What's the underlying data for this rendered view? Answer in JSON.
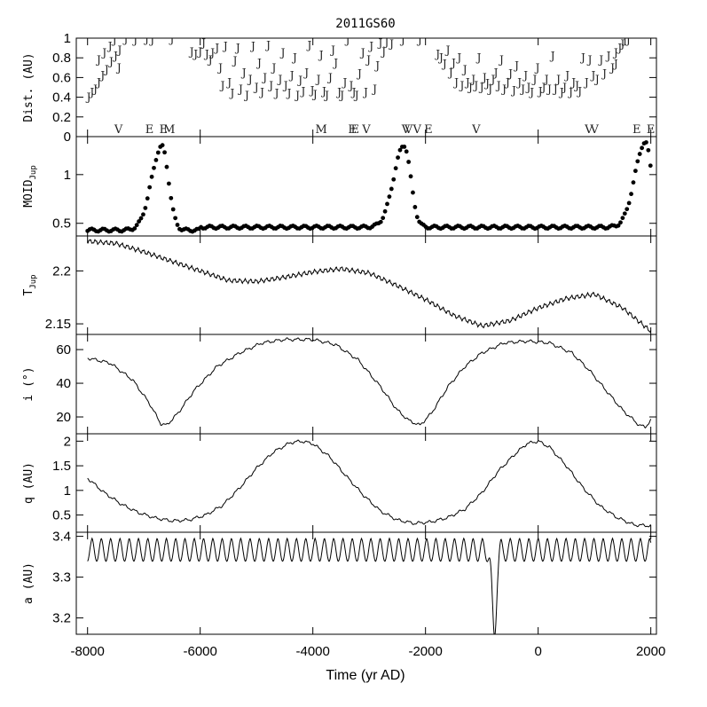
{
  "chart_data": {
    "type": "line",
    "title": "2011GS60",
    "xlabel": "Time (yr AD)",
    "xlim": [
      -8200,
      2100
    ],
    "x_ticks": [
      -8000,
      -6000,
      -4000,
      -2000,
      0,
      2000
    ],
    "x_tick_labels": [
      "-8000",
      "-6000",
      "-4000",
      "-2000",
      "0",
      "2000"
    ],
    "panels": [
      {
        "id": "dist",
        "ylabel": "Dist. (AU)",
        "type": "scatter",
        "marker": "J",
        "ylim": [
          0,
          1
        ],
        "y_ticks": [
          0,
          0.2,
          0.4,
          0.6,
          0.8,
          1
        ],
        "y_tick_labels": [
          "0",
          "0.2",
          "0.4",
          "0.6",
          "0.8",
          "1"
        ],
        "points": [
          [
            -7980,
            0.4
          ],
          [
            -7920,
            0.45
          ],
          [
            -7860,
            0.48
          ],
          [
            -7800,
            0.55
          ],
          [
            -7730,
            0.62
          ],
          [
            -7660,
            0.68
          ],
          [
            -7580,
            0.76
          ],
          [
            -7500,
            0.82
          ],
          [
            -7430,
            0.88
          ],
          [
            -7800,
            0.78
          ],
          [
            -7700,
            0.85
          ],
          [
            -7600,
            0.92
          ],
          [
            -7520,
            0.98
          ],
          [
            -7440,
            0.7
          ],
          [
            -7320,
            0.99
          ],
          [
            -7150,
            0.98
          ],
          [
            -6950,
            0.99
          ],
          [
            -6850,
            0.98
          ],
          [
            -6500,
            0.99
          ],
          [
            -6150,
            0.86
          ],
          [
            -6080,
            0.84
          ],
          [
            -6000,
            0.86
          ],
          [
            -5940,
            0.95
          ],
          [
            -5880,
            0.84
          ],
          [
            -5820,
            0.78
          ],
          [
            -5780,
            0.85
          ],
          [
            -5700,
            0.9
          ],
          [
            -5640,
            0.7
          ],
          [
            -5600,
            0.52
          ],
          [
            -5550,
            0.92
          ],
          [
            -5480,
            0.55
          ],
          [
            -5430,
            0.44
          ],
          [
            -5380,
            0.77
          ],
          [
            -5330,
            0.9
          ],
          [
            -5280,
            0.48
          ],
          [
            -5220,
            0.65
          ],
          [
            -5170,
            0.42
          ],
          [
            -5110,
            0.58
          ],
          [
            -5060,
            0.92
          ],
          [
            -5000,
            0.5
          ],
          [
            -4950,
            0.75
          ],
          [
            -4900,
            0.45
          ],
          [
            -4850,
            0.6
          ],
          [
            -4790,
            0.93
          ],
          [
            -4740,
            0.52
          ],
          [
            -4690,
            0.7
          ],
          [
            -4640,
            0.44
          ],
          [
            -4580,
            0.58
          ],
          [
            -4530,
            0.85
          ],
          [
            -4480,
            0.52
          ],
          [
            -4420,
            0.44
          ],
          [
            -4370,
            0.62
          ],
          [
            -4320,
            0.8
          ],
          [
            -4270,
            0.42
          ],
          [
            -4220,
            0.57
          ],
          [
            -4170,
            0.46
          ],
          [
            -4110,
            0.65
          ],
          [
            -4060,
            0.93
          ],
          [
            -4010,
            0.47
          ],
          [
            -3960,
            0.43
          ],
          [
            -3900,
            0.58
          ],
          [
            -3850,
            0.83
          ],
          [
            -3800,
            0.46
          ],
          [
            -3750,
            0.42
          ],
          [
            -3690,
            0.6
          ],
          [
            -3640,
            0.88
          ],
          [
            -3590,
            0.75
          ],
          [
            -3530,
            0.45
          ],
          [
            -3480,
            0.42
          ],
          [
            -3430,
            0.55
          ],
          [
            -3380,
            0.98
          ],
          [
            -3320,
            0.52
          ],
          [
            -3270,
            0.45
          ],
          [
            -3220,
            0.42
          ],
          [
            -3170,
            0.64
          ],
          [
            -3110,
            0.85
          ],
          [
            -3060,
            0.45
          ],
          [
            -3010,
            0.78
          ],
          [
            -2960,
            0.92
          ],
          [
            -2900,
            0.48
          ],
          [
            -2850,
            0.72
          ],
          [
            -2800,
            0.95
          ],
          [
            -2740,
            0.86
          ],
          [
            -2690,
            0.96
          ],
          [
            -2600,
            0.94
          ],
          [
            -2400,
            0.98
          ],
          [
            -2100,
            0.98
          ],
          [
            -1780,
            0.84
          ],
          [
            -1720,
            0.8
          ],
          [
            -1660,
            0.74
          ],
          [
            -1600,
            0.88
          ],
          [
            -1550,
            0.65
          ],
          [
            -1500,
            0.75
          ],
          [
            -1450,
            0.55
          ],
          [
            -1400,
            0.8
          ],
          [
            -1350,
            0.52
          ],
          [
            -1300,
            0.68
          ],
          [
            -1250,
            0.55
          ],
          [
            -1200,
            0.5
          ],
          [
            -1150,
            0.58
          ],
          [
            -1100,
            0.52
          ],
          [
            -1050,
            0.8
          ],
          [
            -1000,
            0.5
          ],
          [
            -950,
            0.6
          ],
          [
            -900,
            0.54
          ],
          [
            -850,
            0.48
          ],
          [
            -800,
            0.58
          ],
          [
            -750,
            0.65
          ],
          [
            -700,
            0.52
          ],
          [
            -650,
            0.78
          ],
          [
            -600,
            0.48
          ],
          [
            -540,
            0.55
          ],
          [
            -490,
            0.64
          ],
          [
            -430,
            0.47
          ],
          [
            -380,
            0.72
          ],
          [
            -330,
            0.55
          ],
          [
            -270,
            0.48
          ],
          [
            -220,
            0.62
          ],
          [
            -170,
            0.5
          ],
          [
            -110,
            0.45
          ],
          [
            -60,
            0.58
          ],
          [
            -10,
            0.7
          ],
          [
            40,
            0.46
          ],
          [
            100,
            0.5
          ],
          [
            150,
            0.58
          ],
          [
            200,
            0.48
          ],
          [
            260,
            0.82
          ],
          [
            310,
            0.48
          ],
          [
            360,
            0.58
          ],
          [
            420,
            0.45
          ],
          [
            470,
            0.5
          ],
          [
            520,
            0.62
          ],
          [
            580,
            0.45
          ],
          [
            630,
            0.55
          ],
          [
            690,
            0.52
          ],
          [
            740,
            0.46
          ],
          [
            800,
            0.8
          ],
          [
            860,
            0.55
          ],
          [
            920,
            0.78
          ],
          [
            980,
            0.62
          ],
          [
            1050,
            0.58
          ],
          [
            1120,
            0.78
          ],
          [
            1180,
            0.64
          ],
          [
            1250,
            0.82
          ],
          [
            1320,
            0.7
          ],
          [
            1380,
            0.85
          ],
          [
            1450,
            0.9
          ],
          [
            1500,
            0.94
          ],
          [
            1540,
            0.98
          ],
          [
            1600,
            0.98
          ],
          [
            1380,
            0.74
          ]
        ]
      },
      {
        "id": "moid",
        "ylabel": "MOID",
        "ylabel_sub": "Jup",
        "type": "scatter",
        "marker": "dot",
        "ylim": [
          0.37,
          1.39
        ],
        "y_ticks": [
          0.5,
          1
        ],
        "y_tick_labels": [
          "0.5",
          "1"
        ],
        "peaks": [
          [
            -6680,
            1.32
          ],
          [
            -2380,
            1.3
          ],
          [
            1900,
            1.33
          ]
        ],
        "baseline_start": 0.43,
        "baseline_mid": 0.46,
        "events": [
          {
            "label": "V",
            "x": -7450
          },
          {
            "label": "E",
            "x": -6900
          },
          {
            "label": "E",
            "x": -6650
          },
          {
            "label": "M",
            "x": -6550
          },
          {
            "label": "M",
            "x": -3850
          },
          {
            "label": "E",
            "x": -3300
          },
          {
            "label": "E",
            "x": -3250
          },
          {
            "label": "V",
            "x": -3050
          },
          {
            "label": "V",
            "x": -2350
          },
          {
            "label": "V",
            "x": -2300
          },
          {
            "label": "V",
            "x": -2150
          },
          {
            "label": "E",
            "x": -1950
          },
          {
            "label": "V",
            "x": -1100
          },
          {
            "label": "V",
            "x": 900
          },
          {
            "label": "V",
            "x": 1000
          },
          {
            "label": "E",
            "x": 1750
          },
          {
            "label": "E",
            "x": 2000
          }
        ]
      },
      {
        "id": "tjup",
        "ylabel": "T",
        "ylabel_sub": "Jup",
        "type": "line",
        "ylim": [
          2.14,
          2.233
        ],
        "y_ticks": [
          2.15,
          2.2
        ],
        "y_tick_labels": [
          "2.15",
          "2.2"
        ],
        "x": [
          -8000,
          -7500,
          -7000,
          -6500,
          -6000,
          -5500,
          -5000,
          -4500,
          -4000,
          -3500,
          -3000,
          -2500,
          -2000,
          -1500,
          -1000,
          -500,
          0,
          500,
          1000,
          1500,
          2000
        ],
        "values": [
          2.228,
          2.226,
          2.218,
          2.209,
          2.2,
          2.191,
          2.19,
          2.194,
          2.199,
          2.202,
          2.198,
          2.186,
          2.173,
          2.158,
          2.148,
          2.153,
          2.165,
          2.174,
          2.178,
          2.165,
          2.143
        ]
      },
      {
        "id": "inc",
        "ylabel": "i (°)",
        "type": "line",
        "ylim": [
          10,
          69
        ],
        "y_ticks": [
          20,
          40,
          60
        ],
        "y_tick_labels": [
          "20",
          "40",
          "60"
        ],
        "x": [
          -8000,
          -7600,
          -7200,
          -6900,
          -6700,
          -6600,
          -6400,
          -6100,
          -5700,
          -5300,
          -4900,
          -4500,
          -4000,
          -3600,
          -3200,
          -2800,
          -2500,
          -2300,
          -2100,
          -1900,
          -1600,
          -1300,
          -1000,
          -600,
          -200,
          200,
          600,
          900,
          1200,
          1500,
          1800,
          1900,
          2000
        ],
        "values": [
          55,
          52,
          42,
          28,
          16,
          15,
          22,
          36,
          50,
          58,
          64,
          66,
          66,
          63,
          54,
          38,
          24,
          18,
          15,
          22,
          38,
          50,
          58,
          64,
          65,
          64,
          58,
          48,
          36,
          24,
          15,
          14,
          18
        ]
      },
      {
        "id": "q",
        "ylabel": "q (AU)",
        "type": "line",
        "ylim": [
          0.15,
          2.15
        ],
        "y_ticks": [
          0.5,
          1,
          1.5,
          2
        ],
        "y_tick_labels": [
          "0.5",
          "1",
          "1.5",
          "2"
        ],
        "x": [
          -8000,
          -7700,
          -7400,
          -7100,
          -6800,
          -6500,
          -6200,
          -5900,
          -5600,
          -5300,
          -5000,
          -4700,
          -4400,
          -4200,
          -4000,
          -3700,
          -3400,
          -3100,
          -2800,
          -2500,
          -2200,
          -1900,
          -1600,
          -1300,
          -1000,
          -700,
          -400,
          -200,
          0,
          200,
          500,
          800,
          1100,
          1400,
          1700,
          2000
        ],
        "values": [
          1.25,
          0.95,
          0.72,
          0.55,
          0.44,
          0.38,
          0.4,
          0.5,
          0.7,
          1.05,
          1.45,
          1.78,
          1.97,
          2.0,
          1.95,
          1.68,
          1.28,
          0.9,
          0.58,
          0.4,
          0.33,
          0.36,
          0.45,
          0.62,
          0.95,
          1.4,
          1.75,
          1.95,
          2.0,
          1.88,
          1.5,
          1.05,
          0.68,
          0.45,
          0.3,
          0.28
        ]
      },
      {
        "id": "a",
        "ylabel": "a (AU)",
        "type": "line",
        "ylim": [
          3.16,
          3.41
        ],
        "y_ticks": [
          3.2,
          3.3,
          3.4
        ],
        "y_tick_labels": [
          "3.2",
          "3.3",
          "3.4"
        ],
        "mean": 3.373,
        "dip": {
          "x": -780,
          "value": 3.17
        }
      }
    ]
  }
}
